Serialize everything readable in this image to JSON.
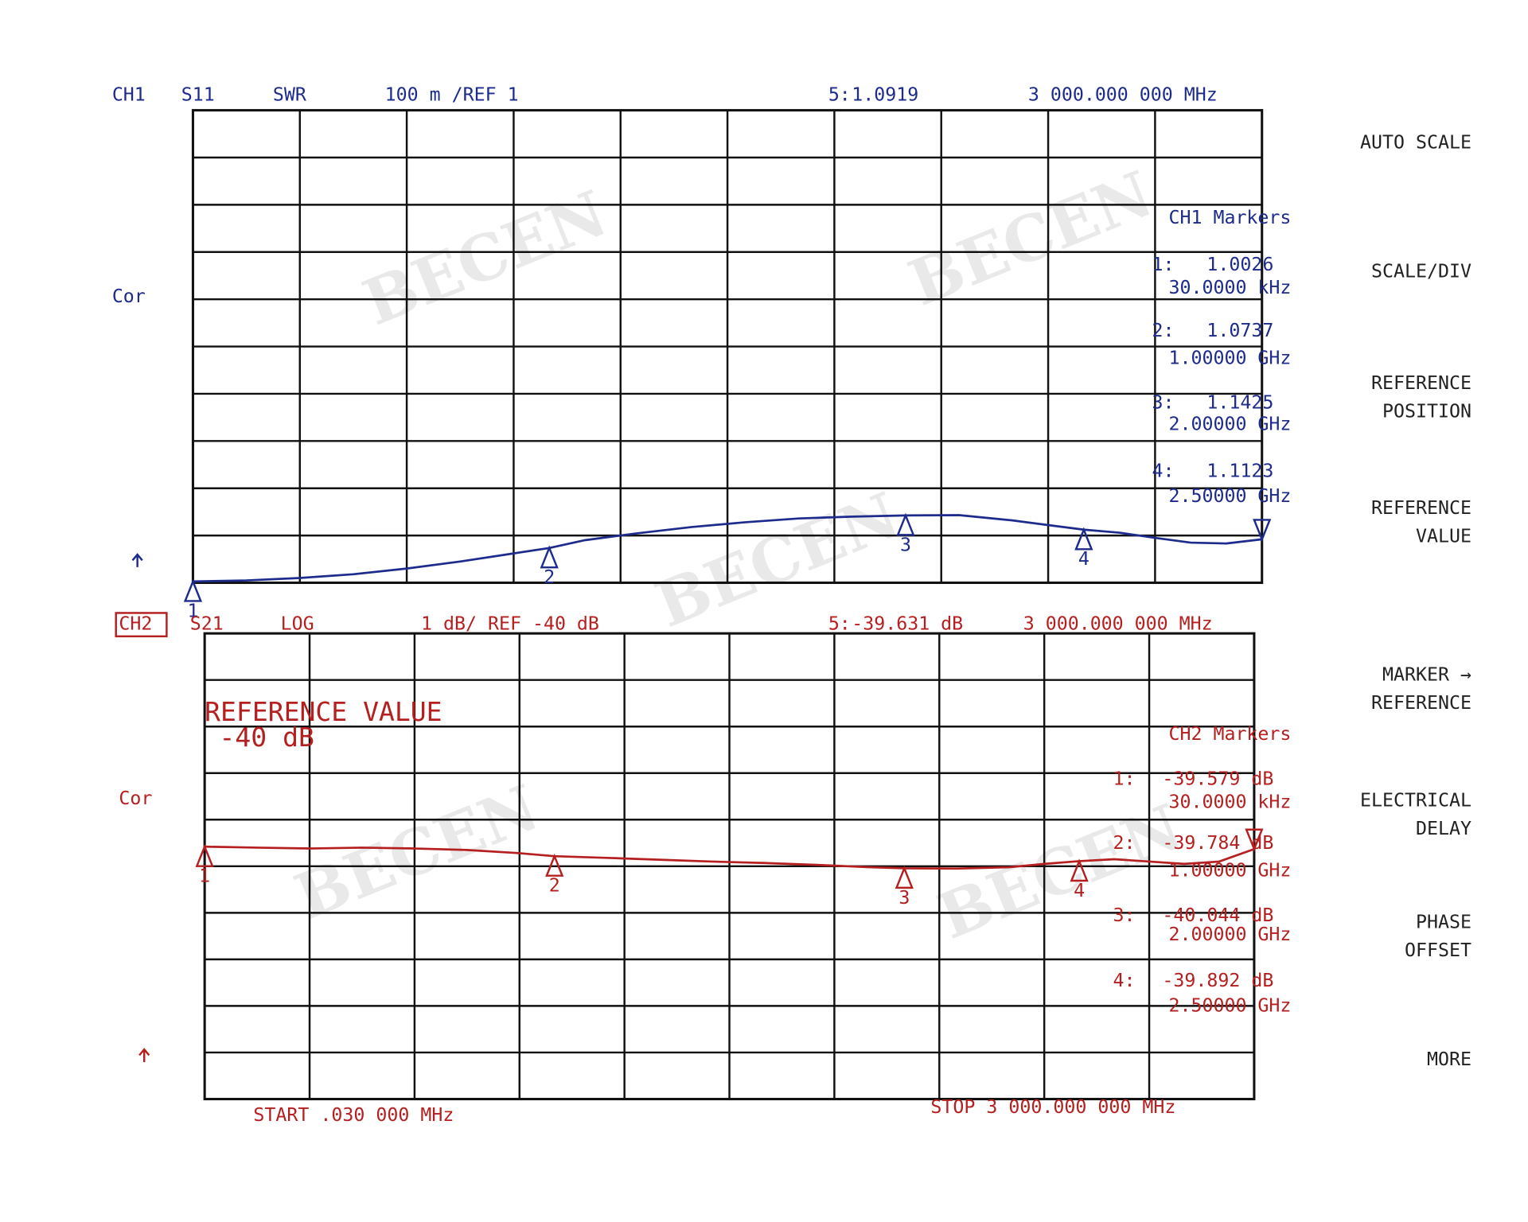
{
  "chart_data": [
    {
      "type": "line",
      "channel": "CH1",
      "parameter": "S11",
      "format": "SWR",
      "scale": "100 m /REF 1",
      "color": "#1c2b8c",
      "cor": "Cor",
      "markers_title": "CH1 Markers",
      "xlim": [
        0.03,
        3000
      ],
      "ylim": [
        1,
        2
      ],
      "grid": {
        "x": 10,
        "y": 10
      },
      "trace": {
        "x": [
          0.03,
          150,
          300,
          450,
          600,
          750,
          900,
          1000,
          1100,
          1250,
          1400,
          1550,
          1700,
          1850,
          2000,
          2150,
          2300,
          2400,
          2500,
          2600,
          2700,
          2800,
          2900,
          3000
        ],
        "values": [
          1.0026,
          1.005,
          1.01,
          1.018,
          1.03,
          1.045,
          1.062,
          1.0737,
          1.09,
          1.105,
          1.118,
          1.128,
          1.136,
          1.14,
          1.1425,
          1.143,
          1.132,
          1.122,
          1.1123,
          1.106,
          1.095,
          1.085,
          1.083,
          1.0919
        ]
      },
      "markers": [
        {
          "id": "1",
          "label": "1:",
          "value": 1.0026,
          "x": 0.03,
          "x_label": "30.0000 kHz"
        },
        {
          "id": "2",
          "label": "2:",
          "value": 1.0737,
          "x": 1000,
          "x_label": "1.00000 GHz"
        },
        {
          "id": "3",
          "label": "3:",
          "value": 1.1425,
          "x": 2000,
          "x_label": "2.00000 GHz"
        },
        {
          "id": "4",
          "label": "4:",
          "value": 1.1123,
          "x": 2500,
          "x_label": "2.50000 GHz"
        }
      ],
      "active_marker": {
        "label": "5:",
        "value": 1.0919,
        "x": 3000,
        "x_label": "3 000.000 000 MHz"
      }
    },
    {
      "type": "line",
      "channel": "CH2",
      "parameter": "S21",
      "format": "LOG",
      "scale": "1 dB/ REF -40 dB",
      "color": "#b51f1f",
      "cor": "Cor",
      "markers_title": "CH2 Markers",
      "annotation": [
        "REFERENCE VALUE",
        "-40 dB"
      ],
      "start": "START  .030 000 MHz",
      "stop": "STOP 3 000.000 000 MHz",
      "xlim": [
        0.03,
        3000
      ],
      "ylim": [
        -45,
        -35
      ],
      "grid": {
        "x": 10,
        "y": 10
      },
      "trace": {
        "x": [
          0.03,
          150,
          300,
          450,
          600,
          750,
          900,
          1000,
          1150,
          1300,
          1450,
          1600,
          1750,
          1900,
          2000,
          2150,
          2300,
          2400,
          2500,
          2600,
          2700,
          2800,
          2900,
          3000
        ],
        "values": [
          -39.579,
          -39.6,
          -39.62,
          -39.6,
          -39.62,
          -39.65,
          -39.72,
          -39.784,
          -39.82,
          -39.86,
          -39.9,
          -39.93,
          -39.97,
          -40.02,
          -40.044,
          -40.05,
          -40.02,
          -39.95,
          -39.892,
          -39.85,
          -39.9,
          -39.95,
          -39.9,
          -39.631
        ]
      },
      "markers": [
        {
          "id": "1",
          "label": "1:",
          "value": -39.579,
          "value_label": "-39.579 dB",
          "x": 0.03,
          "x_label": "30.0000 kHz"
        },
        {
          "id": "2",
          "label": "2:",
          "value": -39.784,
          "value_label": "-39.784 dB",
          "x": 1000,
          "x_label": "1.00000 GHz"
        },
        {
          "id": "3",
          "label": "3:",
          "value": -40.044,
          "value_label": "-40.044 dB",
          "x": 2000,
          "x_label": "2.00000 GHz"
        },
        {
          "id": "4",
          "label": "4:",
          "value": -39.892,
          "value_label": "-39.892 dB",
          "x": 2500,
          "x_label": "2.50000 GHz"
        }
      ],
      "active_marker": {
        "label": "5:",
        "value": -39.631,
        "value_label": "-39.631 dB",
        "x": 3000,
        "x_label": "3 000.000 000 MHz"
      }
    }
  ],
  "softkeys": [
    [
      "AUTO SCALE"
    ],
    [
      "SCALE/DIV"
    ],
    [
      "REFERENCE",
      "POSITION"
    ],
    [
      "REFERENCE",
      "VALUE"
    ],
    [
      "MARKER →",
      "REFERENCE"
    ],
    [
      "ELECTRICAL",
      "DELAY"
    ],
    [
      "PHASE",
      "OFFSET"
    ],
    [
      "MORE"
    ]
  ],
  "watermark": "BECEN"
}
